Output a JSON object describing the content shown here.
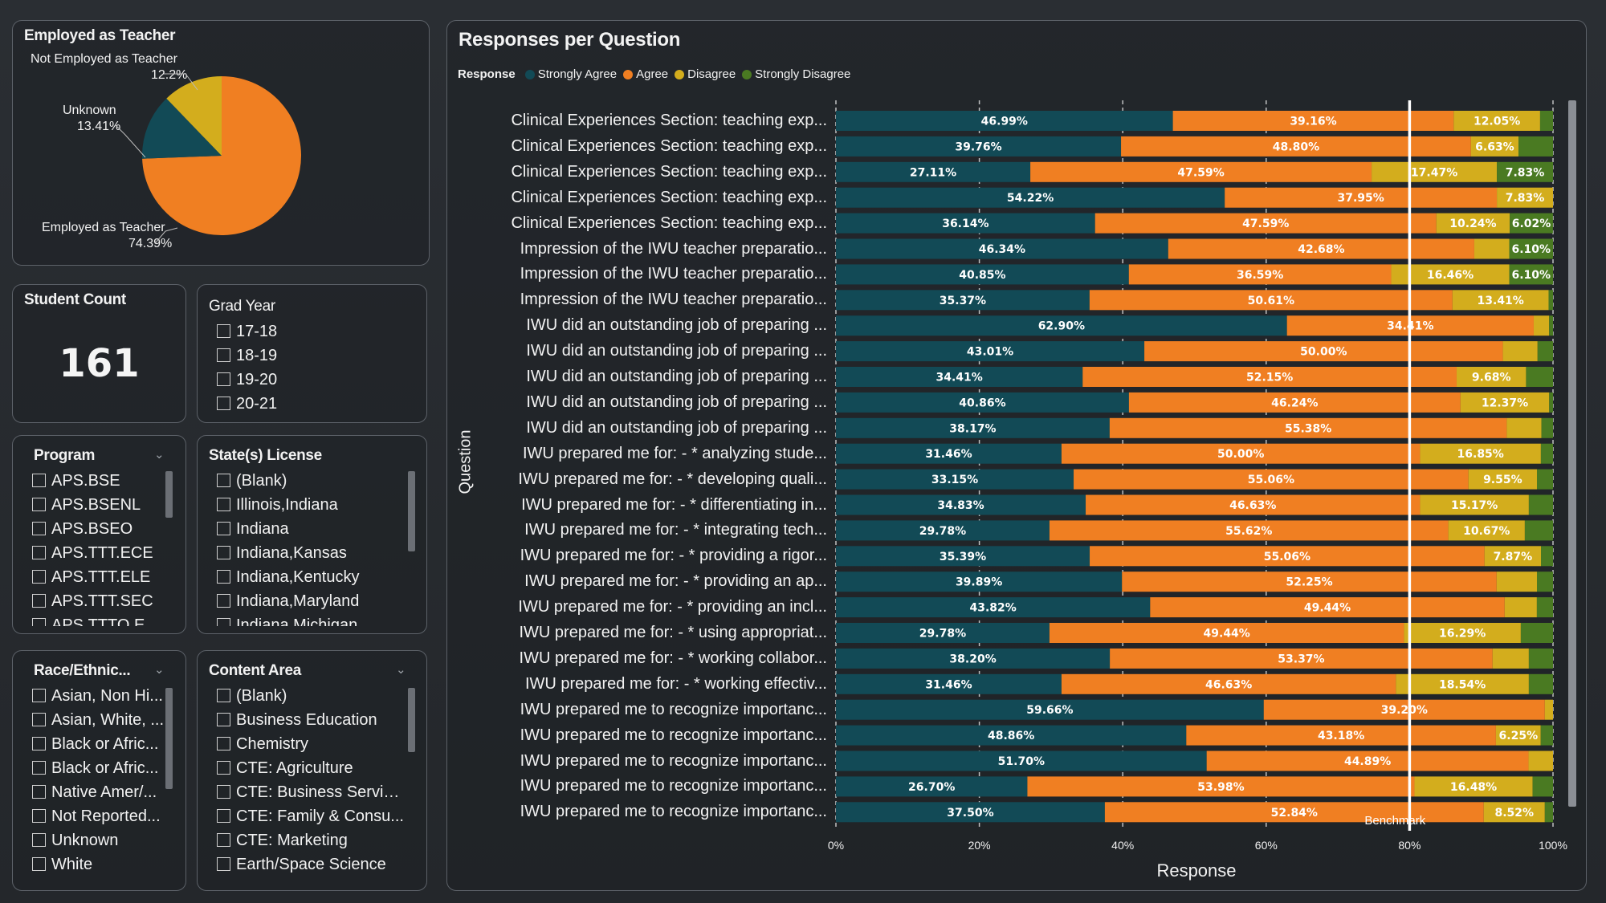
{
  "pie": {
    "title": "Employed as Teacher",
    "slices": [
      {
        "label": "Employed as Teacher",
        "value": "74.39%",
        "pct": 74.39,
        "color": "#f07f22"
      },
      {
        "label": "Unknown",
        "value": "13.41%",
        "pct": 13.41,
        "color": "#124a56"
      },
      {
        "label": "Not Employed as Teacher",
        "value": "12.2%",
        "pct": 12.2,
        "color": "#d3ad1d"
      }
    ]
  },
  "student_count": {
    "title": "Student Count",
    "value": "161"
  },
  "grad_year": {
    "title": "Grad Year",
    "items": [
      "17-18",
      "18-19",
      "19-20",
      "20-21"
    ]
  },
  "program": {
    "title": "Program",
    "items": [
      "APS.BSE",
      "APS.BSENL",
      "APS.BSEO",
      "APS.TTT.ECE",
      "APS.TTT.ELE",
      "APS.TTT.SEC",
      "APS.TTTO.ECE"
    ]
  },
  "state_license": {
    "title": "State(s) License",
    "items": [
      "(Blank)",
      "Illinois,Indiana",
      "Indiana",
      "Indiana,Kansas",
      "Indiana,Kentucky",
      "Indiana,Maryland",
      "Indiana,Michigan"
    ]
  },
  "race": {
    "title": "Race/Ethnic...",
    "items": [
      "Asian, Non Hi...",
      "Asian, White, ...",
      "Black or Afric...",
      "Black or Afric...",
      "Native Amer/...",
      "Not Reported...",
      "Unknown",
      "White"
    ]
  },
  "content_area": {
    "title": "Content Area",
    "items": [
      "(Blank)",
      "Business Education",
      "Chemistry",
      "CTE: Agriculture",
      "CTE: Business Service...",
      "CTE: Family & Consu...",
      "CTE: Marketing",
      "Earth/Space Science"
    ]
  },
  "chart_data": {
    "type": "bar",
    "orientation": "horizontal-stacked-100",
    "title": "Responses per Question",
    "legend_title": "Response",
    "xlabel": "Response",
    "ylabel": "Question",
    "xlim": [
      0,
      100
    ],
    "x_ticks": [
      "0%",
      "20%",
      "40%",
      "60%",
      "80%",
      "100%"
    ],
    "benchmark": {
      "label": "Benchmark",
      "value": 80
    },
    "series": [
      {
        "name": "Strongly Agree",
        "color": "#124a56"
      },
      {
        "name": "Agree",
        "color": "#f07f22"
      },
      {
        "name": "Disagree",
        "color": "#d3ad1d"
      },
      {
        "name": "Strongly Disagree",
        "color": "#4a7a22"
      }
    ],
    "categories": [
      "Clinical Experiences Section: teaching exp...",
      "Clinical Experiences Section: teaching exp...",
      "Clinical Experiences Section: teaching exp...",
      "Clinical Experiences Section: teaching exp...",
      "Clinical Experiences Section: teaching exp...",
      "Impression of the IWU teacher preparatio...",
      "Impression of the IWU teacher preparatio...",
      "Impression of the IWU teacher preparatio...",
      "IWU did an outstanding job of preparing ...",
      "IWU did an outstanding job of preparing ...",
      "IWU did an outstanding job of preparing ...",
      "IWU did an outstanding job of preparing ...",
      "IWU did an outstanding job of preparing ...",
      "IWU prepared me for: - * analyzing stude...",
      "IWU prepared me for: - * developing quali...",
      "IWU prepared me for: - * differentiating in...",
      "IWU prepared me for: - * integrating tech...",
      "IWU prepared me for: - * providing a rigor...",
      "IWU prepared me for: - * providing an ap...",
      "IWU prepared me for: - * providing an incl...",
      "IWU prepared me for: - * using appropriat...",
      "IWU prepared me for: - * working collabor...",
      "IWU prepared me for: - * working effectiv...",
      "IWU prepared me to recognize importanc...",
      "IWU prepared me to recognize importanc...",
      "IWU prepared me to recognize importanc...",
      "IWU prepared me to recognize importanc...",
      "IWU prepared me to recognize importanc..."
    ],
    "rows": [
      {
        "sa": 46.99,
        "a": 39.16,
        "d": 12.05,
        "sd": 1.8,
        "labels": [
          "46.99%",
          "39.16%",
          "12.05%",
          ""
        ]
      },
      {
        "sa": 39.76,
        "a": 48.8,
        "d": 6.63,
        "sd": 4.81,
        "labels": [
          "39.76%",
          "48.80%",
          "6.63%",
          ""
        ]
      },
      {
        "sa": 27.11,
        "a": 47.59,
        "d": 17.47,
        "sd": 7.83,
        "labels": [
          "27.11%",
          "47.59%",
          "17.47%",
          "7.83%"
        ]
      },
      {
        "sa": 54.22,
        "a": 37.95,
        "d": 7.83,
        "sd": 0,
        "labels": [
          "54.22%",
          "37.95%",
          "7.83%",
          ""
        ]
      },
      {
        "sa": 36.14,
        "a": 47.59,
        "d": 10.24,
        "sd": 6.02,
        "labels": [
          "36.14%",
          "47.59%",
          "10.24%",
          "6.02%"
        ]
      },
      {
        "sa": 46.34,
        "a": 42.68,
        "d": 4.88,
        "sd": 6.1,
        "labels": [
          "46.34%",
          "42.68%",
          "",
          "6.10%"
        ]
      },
      {
        "sa": 40.85,
        "a": 36.59,
        "d": 16.46,
        "sd": 6.1,
        "labels": [
          "40.85%",
          "36.59%",
          "16.46%",
          "6.10%"
        ]
      },
      {
        "sa": 35.37,
        "a": 50.61,
        "d": 13.41,
        "sd": 0.61,
        "labels": [
          "35.37%",
          "50.61%",
          "13.41%",
          ""
        ]
      },
      {
        "sa": 62.9,
        "a": 34.41,
        "d": 2.15,
        "sd": 0.54,
        "labels": [
          "62.90%",
          "34.41%",
          "",
          ""
        ]
      },
      {
        "sa": 43.01,
        "a": 50.0,
        "d": 4.84,
        "sd": 2.15,
        "labels": [
          "43.01%",
          "50.00%",
          "",
          ""
        ]
      },
      {
        "sa": 34.41,
        "a": 52.15,
        "d": 9.68,
        "sd": 3.76,
        "labels": [
          "34.41%",
          "52.15%",
          "9.68%",
          ""
        ]
      },
      {
        "sa": 40.86,
        "a": 46.24,
        "d": 12.37,
        "sd": 0.53,
        "labels": [
          "40.86%",
          "46.24%",
          "12.37%",
          ""
        ]
      },
      {
        "sa": 38.17,
        "a": 55.38,
        "d": 4.84,
        "sd": 1.61,
        "labels": [
          "38.17%",
          "55.38%",
          "",
          ""
        ]
      },
      {
        "sa": 31.46,
        "a": 50.0,
        "d": 16.85,
        "sd": 1.69,
        "labels": [
          "31.46%",
          "50.00%",
          "16.85%",
          ""
        ]
      },
      {
        "sa": 33.15,
        "a": 55.06,
        "d": 9.55,
        "sd": 2.24,
        "labels": [
          "33.15%",
          "55.06%",
          "9.55%",
          ""
        ]
      },
      {
        "sa": 34.83,
        "a": 46.63,
        "d": 15.17,
        "sd": 3.37,
        "labels": [
          "34.83%",
          "46.63%",
          "15.17%",
          ""
        ]
      },
      {
        "sa": 29.78,
        "a": 55.62,
        "d": 10.67,
        "sd": 3.93,
        "labels": [
          "29.78%",
          "55.62%",
          "10.67%",
          ""
        ]
      },
      {
        "sa": 35.39,
        "a": 55.06,
        "d": 7.87,
        "sd": 1.68,
        "labels": [
          "35.39%",
          "55.06%",
          "7.87%",
          ""
        ]
      },
      {
        "sa": 39.89,
        "a": 52.25,
        "d": 5.62,
        "sd": 2.24,
        "labels": [
          "39.89%",
          "52.25%",
          "",
          ""
        ]
      },
      {
        "sa": 43.82,
        "a": 49.44,
        "d": 4.49,
        "sd": 2.25,
        "labels": [
          "43.82%",
          "49.44%",
          "",
          ""
        ]
      },
      {
        "sa": 29.78,
        "a": 49.44,
        "d": 16.29,
        "sd": 4.49,
        "labels": [
          "29.78%",
          "49.44%",
          "16.29%",
          ""
        ]
      },
      {
        "sa": 38.2,
        "a": 53.37,
        "d": 5.06,
        "sd": 3.37,
        "labels": [
          "38.20%",
          "53.37%",
          "",
          ""
        ]
      },
      {
        "sa": 31.46,
        "a": 46.63,
        "d": 18.54,
        "sd": 3.37,
        "labels": [
          "31.46%",
          "46.63%",
          "18.54%",
          ""
        ]
      },
      {
        "sa": 59.66,
        "a": 39.2,
        "d": 1.14,
        "sd": 0,
        "labels": [
          "59.66%",
          "39.20%",
          "",
          ""
        ]
      },
      {
        "sa": 48.86,
        "a": 43.18,
        "d": 6.25,
        "sd": 1.71,
        "labels": [
          "48.86%",
          "43.18%",
          "6.25%",
          ""
        ]
      },
      {
        "sa": 51.7,
        "a": 44.89,
        "d": 3.41,
        "sd": 0,
        "labels": [
          "51.70%",
          "44.89%",
          "",
          ""
        ]
      },
      {
        "sa": 26.7,
        "a": 53.98,
        "d": 16.48,
        "sd": 2.84,
        "labels": [
          "26.70%",
          "53.98%",
          "16.48%",
          ""
        ]
      },
      {
        "sa": 37.5,
        "a": 52.84,
        "d": 8.52,
        "sd": 1.14,
        "labels": [
          "37.50%",
          "52.84%",
          "8.52%",
          ""
        ]
      }
    ]
  }
}
